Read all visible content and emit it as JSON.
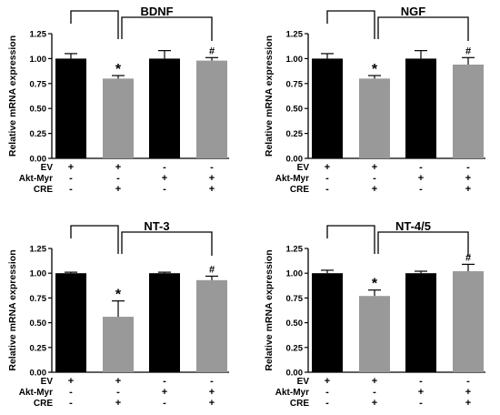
{
  "colors": {
    "group_a": "#000000",
    "group_b": "#999999",
    "axis": "#000000"
  },
  "condition_labels": [
    "EV",
    "Akt-Myr",
    "CRE"
  ],
  "condition_table": [
    [
      "+",
      "+",
      "-",
      "-"
    ],
    [
      "-",
      "-",
      "+",
      "+"
    ],
    [
      "-",
      "+",
      "-",
      "+"
    ]
  ],
  "bar_colors": [
    "#000000",
    "#999999",
    "#000000",
    "#999999"
  ],
  "chart_data": [
    {
      "type": "bar",
      "title": "BDNF",
      "ylabel": "Relative mRNA expression",
      "ylim": [
        0,
        1.25
      ],
      "yticks": [
        "0.00",
        "0.25",
        "0.50",
        "0.75",
        "1.00",
        "1.25"
      ],
      "values": [
        1.0,
        0.8,
        1.0,
        0.98
      ],
      "errors": [
        0.05,
        0.03,
        0.08,
        0.03
      ],
      "annotations": [
        "",
        "*",
        "",
        "#"
      ]
    },
    {
      "type": "bar",
      "title": "NGF",
      "ylabel": "Relative mRNA expression",
      "ylim": [
        0,
        1.25
      ],
      "yticks": [
        "0.00",
        "0.25",
        "0.50",
        "0.75",
        "1.00",
        "1.25"
      ],
      "values": [
        1.0,
        0.8,
        1.0,
        0.94
      ],
      "errors": [
        0.05,
        0.03,
        0.08,
        0.07
      ],
      "annotations": [
        "",
        "*",
        "",
        "#"
      ]
    },
    {
      "type": "bar",
      "title": "NT-3",
      "ylabel": "Relative mRNA expression",
      "ylim": [
        0,
        1.25
      ],
      "yticks": [
        "0.00",
        "0.25",
        "0.50",
        "0.75",
        "1.00",
        "1.25"
      ],
      "values": [
        1.0,
        0.56,
        1.0,
        0.93
      ],
      "errors": [
        0.01,
        0.16,
        0.01,
        0.04
      ],
      "annotations": [
        "",
        "*",
        "",
        "#"
      ]
    },
    {
      "type": "bar",
      "title": "NT-4/5",
      "ylabel": "Relative mRNA expression",
      "ylim": [
        0,
        1.25
      ],
      "yticks": [
        "0.00",
        "0.25",
        "0.50",
        "0.75",
        "1.00",
        "1.25"
      ],
      "values": [
        1.0,
        0.77,
        1.0,
        1.02
      ],
      "errors": [
        0.03,
        0.06,
        0.02,
        0.07
      ],
      "annotations": [
        "",
        "*",
        "",
        "#"
      ]
    }
  ]
}
